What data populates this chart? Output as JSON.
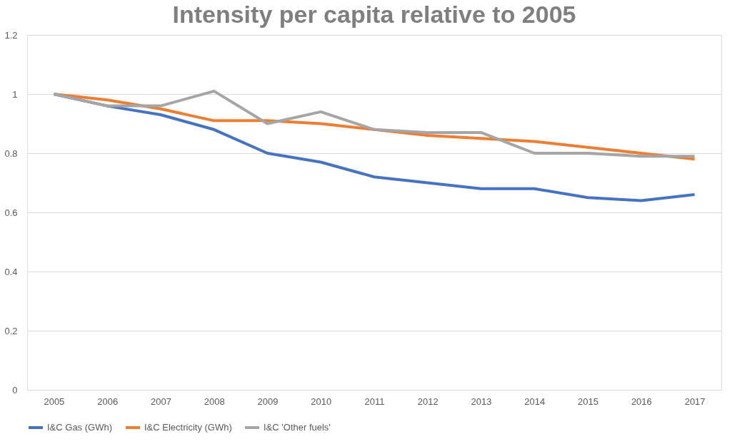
{
  "chart_data": {
    "type": "line",
    "title": "Intensity per capita relative to 2005",
    "categories": [
      "2005",
      "2006",
      "2007",
      "2008",
      "2009",
      "2010",
      "2011",
      "2012",
      "2013",
      "2014",
      "2015",
      "2016",
      "2017"
    ],
    "series": [
      {
        "name": "I&C Gas (GWh)",
        "color": "#4472c4",
        "values": [
          1.0,
          0.96,
          0.93,
          0.88,
          0.8,
          0.77,
          0.72,
          0.7,
          0.68,
          0.68,
          0.65,
          0.64,
          0.66
        ]
      },
      {
        "name": "I&C Electricity (GWh)",
        "color": "#ed7d31",
        "values": [
          1.0,
          0.98,
          0.95,
          0.91,
          0.91,
          0.9,
          0.88,
          0.86,
          0.85,
          0.84,
          0.82,
          0.8,
          0.78
        ]
      },
      {
        "name": "I&C 'Other fuels'",
        "color": "#a5a5a5",
        "values": [
          1.0,
          0.96,
          0.96,
          1.01,
          0.9,
          0.94,
          0.88,
          0.87,
          0.87,
          0.8,
          0.8,
          0.79,
          0.79
        ]
      }
    ],
    "ylim": [
      0,
      1.2
    ],
    "yticks": [
      0,
      0.2,
      0.4,
      0.6,
      0.8,
      1,
      1.2
    ],
    "grid": "y",
    "legend": "bottom",
    "marker": "none",
    "line_style": "solid"
  }
}
